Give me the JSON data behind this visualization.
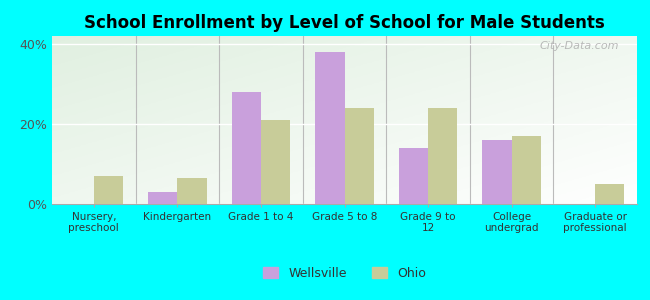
{
  "title": "School Enrollment by Level of School for Male Students",
  "categories": [
    "Nursery,\npreschool",
    "Kindergarten",
    "Grade 1 to 4",
    "Grade 5 to 8",
    "Grade 9 to\n12",
    "College\nundergrad",
    "Graduate or\nprofessional"
  ],
  "wellsville": [
    0.0,
    3.0,
    28.0,
    38.0,
    14.0,
    16.0,
    0.0
  ],
  "ohio": [
    7.0,
    6.5,
    21.0,
    24.0,
    24.0,
    17.0,
    5.0
  ],
  "wellsville_color": "#c9a0dc",
  "ohio_color": "#c8cc99",
  "background_color": "#00ffff",
  "ylim": [
    0,
    42
  ],
  "yticks": [
    0,
    20,
    40
  ],
  "ytick_labels": [
    "0%",
    "20%",
    "40%"
  ],
  "bar_width": 0.35,
  "legend_labels": [
    "Wellsville",
    "Ohio"
  ],
  "watermark": "City-Data.com"
}
